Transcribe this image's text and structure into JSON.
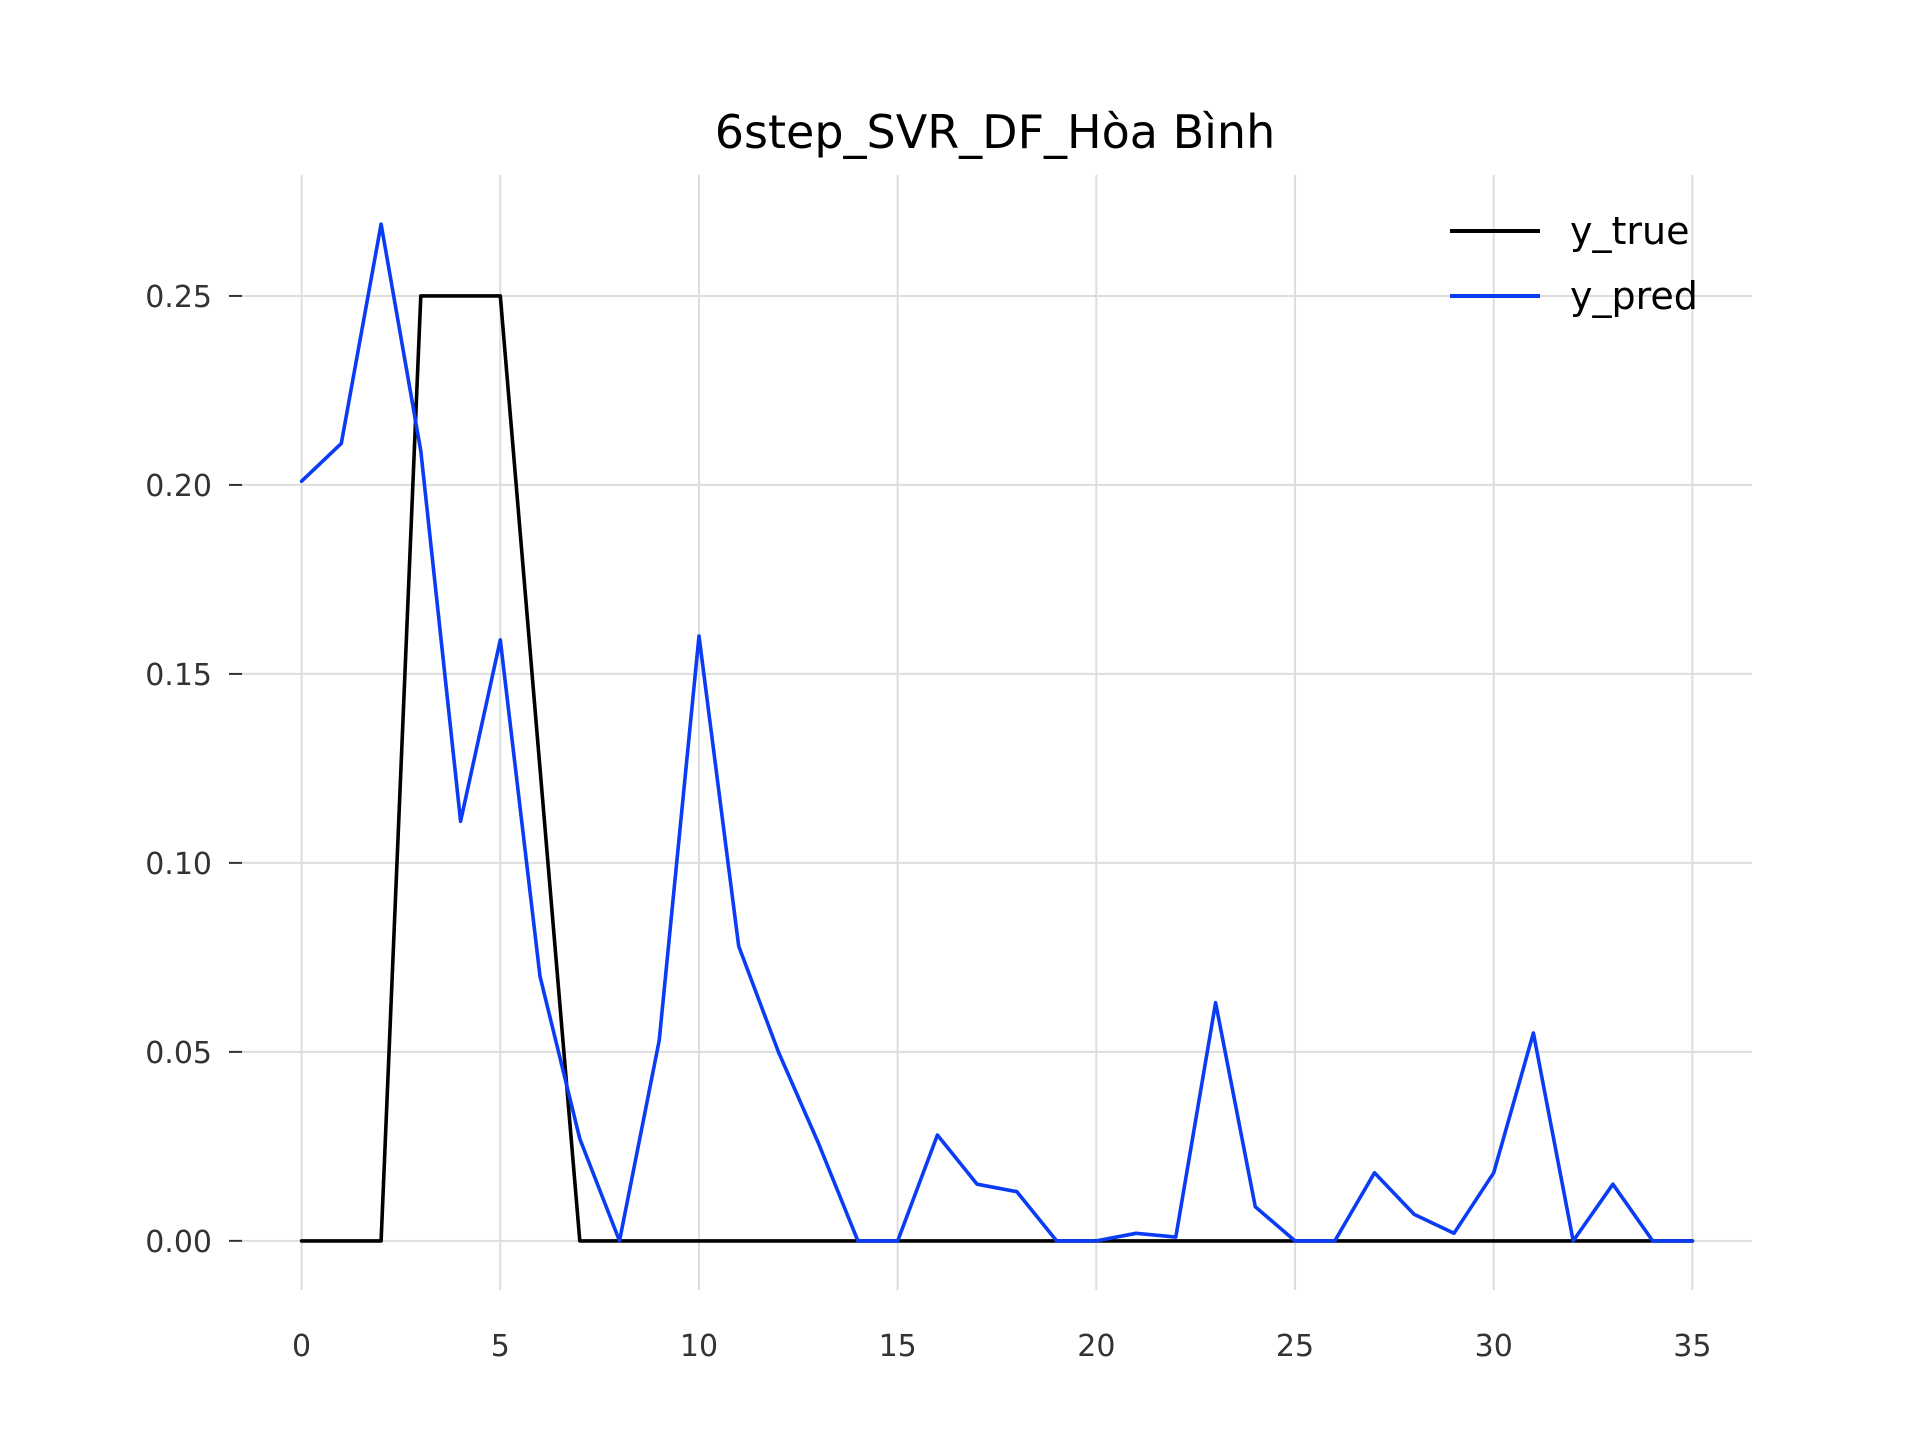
{
  "chart_data": {
    "type": "line",
    "title": "6step_SVR_DF_Hòa Bình",
    "xlabel": "",
    "ylabel": "",
    "x": [
      0,
      1,
      2,
      3,
      4,
      5,
      6,
      7,
      8,
      9,
      10,
      11,
      12,
      13,
      14,
      15,
      16,
      17,
      18,
      19,
      20,
      21,
      22,
      23,
      24,
      25,
      26,
      27,
      28,
      29,
      30,
      31,
      32,
      33,
      34,
      35
    ],
    "xlim": [
      -1.5,
      36.5
    ],
    "ylim": [
      -0.013,
      0.282
    ],
    "xticks": [
      0,
      5,
      10,
      15,
      20,
      25,
      30,
      35
    ],
    "xtick_labels": [
      "0",
      "5",
      "10",
      "15",
      "20",
      "25",
      "30",
      "35"
    ],
    "yticks": [
      0.0,
      0.05,
      0.1,
      0.15,
      0.2,
      0.25
    ],
    "ytick_labels": [
      "0.00",
      "0.05",
      "0.10",
      "0.15",
      "0.20",
      "0.25"
    ],
    "grid": true,
    "legend_position": "top-right",
    "series": [
      {
        "name": "y_true",
        "color": "#000000",
        "values": [
          0,
          0,
          0,
          0.25,
          0.25,
          0.25,
          0.125,
          0,
          0,
          0,
          0,
          0,
          0,
          0,
          0,
          0,
          0,
          0,
          0,
          0,
          0,
          0,
          0,
          0,
          0,
          0,
          0,
          0,
          0,
          0,
          0,
          0,
          0,
          0,
          0,
          0
        ]
      },
      {
        "name": "y_pred",
        "color": "#0a3cf5",
        "values": [
          0.201,
          0.211,
          0.269,
          0.209,
          0.111,
          0.159,
          0.07,
          0.027,
          0.0,
          0.053,
          0.16,
          0.078,
          0.05,
          0.026,
          0.0,
          0.0,
          0.028,
          0.015,
          0.013,
          0.0,
          0.0,
          0.002,
          0.001,
          0.063,
          0.009,
          0.0,
          0.0,
          0.018,
          0.007,
          0.002,
          0.018,
          0.055,
          0.0,
          0.015,
          0.0,
          0.0
        ]
      }
    ]
  }
}
